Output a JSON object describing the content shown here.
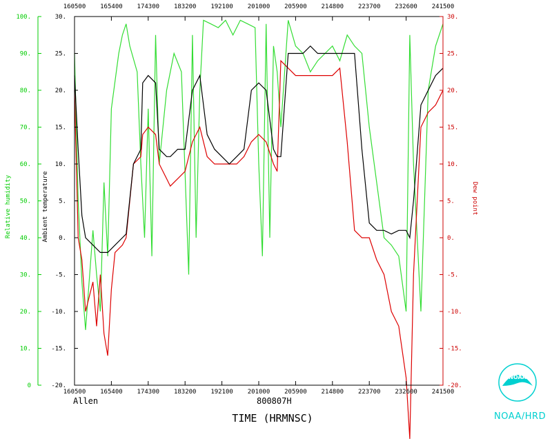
{
  "chart_data": {
    "type": "line",
    "time_ticks": [
      "160500",
      "165400",
      "174300",
      "183200",
      "192100",
      "201000",
      "205900",
      "214800",
      "223700",
      "232600",
      "241500"
    ],
    "xlabel": "TIME (HRMNSC)",
    "storm_label": "Allen",
    "date_label": "800807H",
    "left_outer_axis": {
      "label": "Relative humidity",
      "range": [
        0,
        100
      ],
      "ticks": [
        "0",
        "10.",
        "20.",
        "30.",
        "40.",
        "50.",
        "60.",
        "70.",
        "80.",
        "90.",
        "100."
      ],
      "color": "#00cc00"
    },
    "left_inner_axis": {
      "label": "Ambient temperature",
      "range": [
        -20,
        30
      ],
      "ticks": [
        "-20.",
        "-15.",
        "-10.",
        "-5.",
        "0.",
        "5.",
        "10.",
        "15.",
        "20.",
        "25.",
        "30."
      ],
      "color": "#000000"
    },
    "right_axis": {
      "label": "Dew point",
      "range": [
        -20,
        30
      ],
      "ticks": [
        "-20.",
        "-15.",
        "-10.",
        "-5.",
        "0.",
        "5.",
        "10.",
        "15.",
        "20.",
        "25.",
        "30."
      ],
      "color": "#cc0000"
    },
    "series": [
      {
        "key": "temperature",
        "color": "#000000",
        "axis": "left_inner",
        "x": [
          0,
          0.01,
          0.02,
          0.03,
          0.05,
          0.07,
          0.09,
          0.11,
          0.13,
          0.14,
          0.16,
          0.18,
          0.185,
          0.2,
          0.22,
          0.23,
          0.25,
          0.26,
          0.28,
          0.3,
          0.32,
          0.34,
          0.36,
          0.38,
          0.4,
          0.42,
          0.44,
          0.46,
          0.48,
          0.5,
          0.52,
          0.54,
          0.55,
          0.56,
          0.58,
          0.6,
          0.62,
          0.64,
          0.66,
          0.68,
          0.7,
          0.72,
          0.74,
          0.76,
          0.78,
          0.8,
          0.82,
          0.84,
          0.86,
          0.88,
          0.9,
          0.91,
          0.92,
          0.94,
          0.96,
          0.98,
          1.0
        ],
        "y": [
          22,
          12,
          3,
          0,
          -1,
          -2,
          -2,
          -1,
          0,
          0.5,
          10,
          12,
          21,
          22,
          21,
          12,
          11,
          11,
          12,
          12,
          20,
          22,
          14,
          12,
          11,
          10,
          11,
          12,
          20,
          21,
          20,
          12,
          11,
          11,
          25,
          25,
          25,
          26,
          25,
          25,
          25,
          25,
          25,
          25,
          12,
          2,
          1,
          1,
          0.5,
          1,
          1,
          0,
          5,
          18,
          20,
          22,
          23
        ]
      },
      {
        "key": "dew_point",
        "color": "#dd0000",
        "axis": "right",
        "x": [
          0,
          0.01,
          0.02,
          0.03,
          0.05,
          0.06,
          0.07,
          0.08,
          0.09,
          0.1,
          0.11,
          0.13,
          0.14,
          0.16,
          0.18,
          0.185,
          0.2,
          0.22,
          0.23,
          0.25,
          0.26,
          0.28,
          0.3,
          0.32,
          0.34,
          0.36,
          0.38,
          0.4,
          0.42,
          0.44,
          0.46,
          0.48,
          0.5,
          0.52,
          0.54,
          0.55,
          0.56,
          0.58,
          0.6,
          0.62,
          0.64,
          0.66,
          0.68,
          0.7,
          0.72,
          0.74,
          0.76,
          0.78,
          0.8,
          0.82,
          0.84,
          0.86,
          0.88,
          0.9,
          0.91,
          0.92,
          0.94,
          0.96,
          0.98,
          1.0
        ],
        "y": [
          20,
          0,
          -3,
          -10,
          -6,
          -12,
          -5,
          -13,
          -16,
          -7,
          -2,
          -1,
          0,
          10,
          11,
          14,
          15,
          14,
          10,
          8,
          7,
          8,
          9,
          13,
          15,
          11,
          10,
          10,
          10,
          10,
          11,
          13,
          14,
          13,
          10,
          9,
          24,
          23,
          22,
          22,
          22,
          22,
          22,
          22,
          23,
          13,
          1,
          0,
          0,
          -3,
          -5,
          -10,
          -12,
          -19,
          -28,
          -5,
          15,
          17,
          18,
          20
        ]
      },
      {
        "key": "relative_humidity",
        "color": "#33dd33",
        "axis": "left_outer",
        "x": [
          0,
          0.01,
          0.02,
          0.03,
          0.05,
          0.06,
          0.07,
          0.08,
          0.09,
          0.1,
          0.12,
          0.13,
          0.14,
          0.15,
          0.17,
          0.18,
          0.19,
          0.2,
          0.21,
          0.22,
          0.23,
          0.25,
          0.27,
          0.29,
          0.31,
          0.32,
          0.33,
          0.34,
          0.35,
          0.37,
          0.39,
          0.41,
          0.43,
          0.45,
          0.47,
          0.49,
          0.5,
          0.51,
          0.52,
          0.53,
          0.54,
          0.55,
          0.56,
          0.58,
          0.6,
          0.62,
          0.64,
          0.66,
          0.68,
          0.7,
          0.72,
          0.74,
          0.76,
          0.78,
          0.8,
          0.82,
          0.84,
          0.86,
          0.88,
          0.9,
          0.91,
          0.92,
          0.94,
          0.96,
          0.98,
          1.0
        ],
        "y": [
          90,
          50,
          28,
          15,
          42,
          30,
          20,
          55,
          35,
          75,
          90,
          95,
          98,
          92,
          85,
          60,
          40,
          75,
          35,
          95,
          60,
          80,
          90,
          85,
          30,
          95,
          40,
          80,
          99,
          98,
          97,
          99,
          95,
          99,
          98,
          97,
          60,
          35,
          98,
          40,
          92,
          85,
          70,
          99,
          92,
          90,
          85,
          88,
          90,
          92,
          88,
          95,
          92,
          90,
          70,
          55,
          40,
          38,
          35,
          20,
          95,
          60,
          20,
          80,
          92,
          98
        ]
      }
    ]
  },
  "logo": {
    "text": "NOAA/HRD",
    "emblem_text": "NOAA"
  }
}
